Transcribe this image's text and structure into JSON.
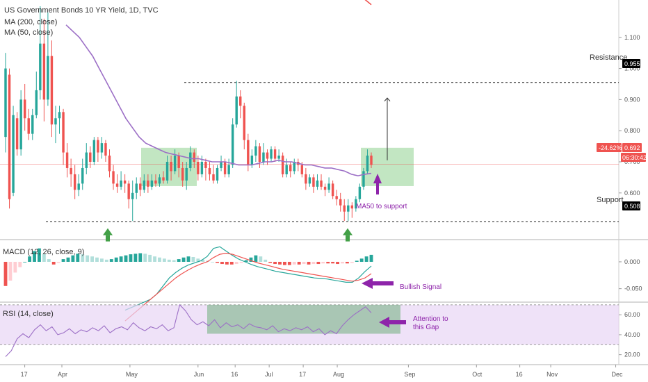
{
  "colors": {
    "up": "#26a69a",
    "down": "#ef5350",
    "ma50": "#9c6fc6",
    "macd_line": "#26a69a",
    "signal_line": "#ef5350",
    "annotation": "#8e24aa",
    "green_arrow": "#43a047",
    "zone_fill": "#8fd18f",
    "rsi_band": "#e8d5f5"
  },
  "legend": {
    "title": "US Government Bonds 10 YR Yield, 1D, TVC",
    "ma200": "MA (200, close)",
    "ma50": "MA (50, close)"
  },
  "price_labels": {
    "resistance_text": "Resistance",
    "resistance_value": "0.955",
    "support_text": "Support",
    "support_value": "0.508",
    "current_change": "-24.62%",
    "current_value": "0.692",
    "countdown": "06:30:42"
  },
  "annotations": {
    "ma50_support": "MA50 to support",
    "bullish": "Bullish Signal",
    "gap_line1": "Attention to",
    "gap_line2": "this Gap"
  },
  "panes": {
    "macd_title": "MACD (12, 26, close, 9)",
    "rsi_title": "RSI (14, close)"
  },
  "chart_data": [
    {
      "type": "candlestick",
      "title": "US Government Bonds 10 YR Yield, 1D, TVC",
      "x_tick_labels": [
        "17",
        "Apr",
        "May",
        "Jun",
        "16",
        "Jul",
        "17",
        "Aug",
        "Sep",
        "Oct",
        "16",
        "Nov",
        "Dec"
      ],
      "y_ticks": [
        0.6,
        0.7,
        0.8,
        0.9,
        1.0,
        1.1
      ],
      "y_tick_labels": [
        "0.600",
        "0.700",
        "0.800",
        "0.900",
        "1.000",
        "1.100"
      ],
      "ylim": [
        0.45,
        1.22
      ],
      "resistance": 0.955,
      "support": 0.508,
      "last": 0.692,
      "candles": [
        {
          "o": 0.78,
          "c": 1.0,
          "h": 1.05,
          "l": 0.73
        },
        {
          "o": 0.98,
          "c": 0.58,
          "h": 1.0,
          "l": 0.55
        },
        {
          "o": 0.6,
          "c": 0.85,
          "h": 0.88,
          "l": 0.59
        },
        {
          "o": 0.84,
          "c": 0.74,
          "h": 0.86,
          "l": 0.72
        },
        {
          "o": 0.74,
          "c": 0.9,
          "h": 0.93,
          "l": 0.72
        },
        {
          "o": 0.9,
          "c": 0.84,
          "h": 0.95,
          "l": 0.8
        },
        {
          "o": 0.84,
          "c": 0.79,
          "h": 0.87,
          "l": 0.77
        },
        {
          "o": 0.79,
          "c": 0.85,
          "h": 0.87,
          "l": 0.77
        },
        {
          "o": 0.85,
          "c": 0.93,
          "h": 0.99,
          "l": 0.84
        },
        {
          "o": 0.93,
          "c": 1.08,
          "h": 1.2,
          "l": 0.9
        },
        {
          "o": 1.08,
          "c": 0.9,
          "h": 1.16,
          "l": 0.83
        },
        {
          "o": 0.9,
          "c": 1.04,
          "h": 1.18,
          "l": 0.88
        },
        {
          "o": 1.04,
          "c": 0.82,
          "h": 1.09,
          "l": 0.78
        },
        {
          "o": 0.82,
          "c": 0.84,
          "h": 0.88,
          "l": 0.76
        },
        {
          "o": 0.84,
          "c": 0.86,
          "h": 0.88,
          "l": 0.79
        },
        {
          "o": 0.86,
          "c": 0.73,
          "h": 0.87,
          "l": 0.69
        },
        {
          "o": 0.73,
          "c": 0.68,
          "h": 0.76,
          "l": 0.65
        },
        {
          "o": 0.68,
          "c": 0.66,
          "h": 0.71,
          "l": 0.62
        },
        {
          "o": 0.66,
          "c": 0.61,
          "h": 0.69,
          "l": 0.58
        },
        {
          "o": 0.61,
          "c": 0.63,
          "h": 0.66,
          "l": 0.59
        },
        {
          "o": 0.63,
          "c": 0.68,
          "h": 0.71,
          "l": 0.61
        },
        {
          "o": 0.68,
          "c": 0.73,
          "h": 0.76,
          "l": 0.66
        },
        {
          "o": 0.73,
          "c": 0.7,
          "h": 0.75,
          "l": 0.68
        },
        {
          "o": 0.7,
          "c": 0.77,
          "h": 0.78,
          "l": 0.69
        },
        {
          "o": 0.77,
          "c": 0.73,
          "h": 0.78,
          "l": 0.7
        },
        {
          "o": 0.73,
          "c": 0.76,
          "h": 0.78,
          "l": 0.71
        },
        {
          "o": 0.76,
          "c": 0.72,
          "h": 0.77,
          "l": 0.7
        },
        {
          "o": 0.72,
          "c": 0.67,
          "h": 0.74,
          "l": 0.65
        },
        {
          "o": 0.67,
          "c": 0.63,
          "h": 0.69,
          "l": 0.61
        },
        {
          "o": 0.63,
          "c": 0.62,
          "h": 0.66,
          "l": 0.6
        },
        {
          "o": 0.62,
          "c": 0.64,
          "h": 0.67,
          "l": 0.61
        },
        {
          "o": 0.64,
          "c": 0.63,
          "h": 0.66,
          "l": 0.6
        },
        {
          "o": 0.63,
          "c": 0.58,
          "h": 0.64,
          "l": 0.55
        },
        {
          "o": 0.58,
          "c": 0.6,
          "h": 0.64,
          "l": 0.51
        },
        {
          "o": 0.6,
          "c": 0.63,
          "h": 0.65,
          "l": 0.58
        },
        {
          "o": 0.63,
          "c": 0.61,
          "h": 0.65,
          "l": 0.59
        },
        {
          "o": 0.61,
          "c": 0.64,
          "h": 0.66,
          "l": 0.6
        },
        {
          "o": 0.64,
          "c": 0.62,
          "h": 0.66,
          "l": 0.6
        },
        {
          "o": 0.62,
          "c": 0.64,
          "h": 0.66,
          "l": 0.61
        },
        {
          "o": 0.64,
          "c": 0.63,
          "h": 0.66,
          "l": 0.62
        },
        {
          "o": 0.63,
          "c": 0.65,
          "h": 0.66,
          "l": 0.62
        },
        {
          "o": 0.65,
          "c": 0.64,
          "h": 0.67,
          "l": 0.63
        },
        {
          "o": 0.64,
          "c": 0.7,
          "h": 0.72,
          "l": 0.63
        },
        {
          "o": 0.7,
          "c": 0.67,
          "h": 0.72,
          "l": 0.64
        },
        {
          "o": 0.67,
          "c": 0.72,
          "h": 0.74,
          "l": 0.66
        },
        {
          "o": 0.72,
          "c": 0.68,
          "h": 0.73,
          "l": 0.65
        },
        {
          "o": 0.68,
          "c": 0.64,
          "h": 0.7,
          "l": 0.62
        },
        {
          "o": 0.64,
          "c": 0.68,
          "h": 0.7,
          "l": 0.61
        },
        {
          "o": 0.68,
          "c": 0.73,
          "h": 0.75,
          "l": 0.67
        },
        {
          "o": 0.73,
          "c": 0.7,
          "h": 0.74,
          "l": 0.68
        },
        {
          "o": 0.7,
          "c": 0.66,
          "h": 0.72,
          "l": 0.64
        },
        {
          "o": 0.66,
          "c": 0.7,
          "h": 0.72,
          "l": 0.65
        },
        {
          "o": 0.7,
          "c": 0.68,
          "h": 0.71,
          "l": 0.64
        },
        {
          "o": 0.68,
          "c": 0.66,
          "h": 0.7,
          "l": 0.64
        },
        {
          "o": 0.66,
          "c": 0.64,
          "h": 0.69,
          "l": 0.63
        },
        {
          "o": 0.64,
          "c": 0.68,
          "h": 0.69,
          "l": 0.63
        },
        {
          "o": 0.68,
          "c": 0.7,
          "h": 0.72,
          "l": 0.67
        },
        {
          "o": 0.7,
          "c": 0.66,
          "h": 0.71,
          "l": 0.65
        },
        {
          "o": 0.66,
          "c": 0.69,
          "h": 0.71,
          "l": 0.65
        },
        {
          "o": 0.69,
          "c": 0.82,
          "h": 0.84,
          "l": 0.68
        },
        {
          "o": 0.82,
          "c": 0.91,
          "h": 0.96,
          "l": 0.81
        },
        {
          "o": 0.91,
          "c": 0.88,
          "h": 0.93,
          "l": 0.84
        },
        {
          "o": 0.88,
          "c": 0.77,
          "h": 0.89,
          "l": 0.74
        },
        {
          "o": 0.77,
          "c": 0.69,
          "h": 0.79,
          "l": 0.67
        },
        {
          "o": 0.69,
          "c": 0.72,
          "h": 0.74,
          "l": 0.68
        },
        {
          "o": 0.72,
          "c": 0.75,
          "h": 0.77,
          "l": 0.7
        },
        {
          "o": 0.75,
          "c": 0.7,
          "h": 0.76,
          "l": 0.68
        },
        {
          "o": 0.7,
          "c": 0.73,
          "h": 0.76,
          "l": 0.69
        },
        {
          "o": 0.73,
          "c": 0.71,
          "h": 0.74,
          "l": 0.69
        },
        {
          "o": 0.71,
          "c": 0.74,
          "h": 0.75,
          "l": 0.7
        },
        {
          "o": 0.74,
          "c": 0.71,
          "h": 0.75,
          "l": 0.7
        },
        {
          "o": 0.71,
          "c": 0.72,
          "h": 0.74,
          "l": 0.7
        },
        {
          "o": 0.72,
          "c": 0.66,
          "h": 0.73,
          "l": 0.65
        },
        {
          "o": 0.66,
          "c": 0.69,
          "h": 0.71,
          "l": 0.65
        },
        {
          "o": 0.69,
          "c": 0.67,
          "h": 0.7,
          "l": 0.65
        },
        {
          "o": 0.67,
          "c": 0.7,
          "h": 0.71,
          "l": 0.66
        },
        {
          "o": 0.7,
          "c": 0.69,
          "h": 0.71,
          "l": 0.67
        },
        {
          "o": 0.69,
          "c": 0.66,
          "h": 0.7,
          "l": 0.65
        },
        {
          "o": 0.66,
          "c": 0.63,
          "h": 0.68,
          "l": 0.61
        },
        {
          "o": 0.63,
          "c": 0.65,
          "h": 0.66,
          "l": 0.62
        },
        {
          "o": 0.65,
          "c": 0.62,
          "h": 0.66,
          "l": 0.6
        },
        {
          "o": 0.62,
          "c": 0.64,
          "h": 0.66,
          "l": 0.61
        },
        {
          "o": 0.64,
          "c": 0.62,
          "h": 0.66,
          "l": 0.61
        },
        {
          "o": 0.62,
          "c": 0.61,
          "h": 0.63,
          "l": 0.59
        },
        {
          "o": 0.61,
          "c": 0.63,
          "h": 0.65,
          "l": 0.6
        },
        {
          "o": 0.63,
          "c": 0.59,
          "h": 0.64,
          "l": 0.58
        },
        {
          "o": 0.59,
          "c": 0.58,
          "h": 0.61,
          "l": 0.56
        },
        {
          "o": 0.58,
          "c": 0.56,
          "h": 0.6,
          "l": 0.54
        },
        {
          "o": 0.56,
          "c": 0.54,
          "h": 0.58,
          "l": 0.51
        },
        {
          "o": 0.54,
          "c": 0.56,
          "h": 0.58,
          "l": 0.51
        },
        {
          "o": 0.56,
          "c": 0.55,
          "h": 0.57,
          "l": 0.52
        },
        {
          "o": 0.55,
          "c": 0.58,
          "h": 0.59,
          "l": 0.54
        },
        {
          "o": 0.58,
          "c": 0.62,
          "h": 0.63,
          "l": 0.57
        },
        {
          "o": 0.62,
          "c": 0.67,
          "h": 0.68,
          "l": 0.61
        },
        {
          "o": 0.67,
          "c": 0.72,
          "h": 0.74,
          "l": 0.66
        },
        {
          "o": 0.72,
          "c": 0.69,
          "h": 0.73,
          "l": 0.68
        }
      ],
      "ma50": [
        1.14,
        1.12,
        1.1,
        1.07,
        1.04,
        1.0,
        0.96,
        0.92,
        0.88,
        0.84,
        0.81,
        0.78,
        0.76,
        0.75,
        0.74,
        0.73,
        0.725,
        0.72,
        0.715,
        0.71,
        0.71,
        0.705,
        0.7,
        0.7,
        0.7,
        0.695,
        0.69,
        0.69,
        0.69,
        0.695,
        0.7,
        0.7,
        0.705,
        0.7,
        0.7,
        0.695,
        0.69,
        0.69,
        0.685,
        0.68,
        0.68,
        0.675,
        0.67,
        0.66,
        0.655,
        0.66,
        0.663
      ],
      "x_tick_fractions": [
        0.04,
        0.1,
        0.21,
        0.32,
        0.38,
        0.435,
        0.49,
        0.545,
        0.66,
        0.77,
        0.84,
        0.89,
        0.995
      ]
    },
    {
      "type": "bar",
      "title": "MACD (12, 26, close, 9)",
      "y_ticks": [
        0.0,
        -0.05
      ],
      "y_tick_labels": [
        "0.000",
        "-0.050"
      ],
      "ylim": [
        -0.075,
        0.04
      ],
      "histogram": [
        -0.045,
        -0.035,
        -0.02,
        -0.01,
        0.0,
        0.01,
        0.02,
        0.025,
        0.015,
        0.005,
        -0.005,
        -0.002,
        0.005,
        0.008,
        0.012,
        0.015,
        0.014,
        0.012,
        0.01,
        0.008,
        0.006,
        0.004,
        0.005,
        0.008,
        0.01,
        0.012,
        0.014,
        0.015,
        0.016,
        0.015,
        0.013,
        0.01,
        0.008,
        0.006,
        0.004,
        0.003,
        0.005,
        0.008,
        0.01,
        0.009,
        0.006,
        0.004,
        0.002,
        0.0,
        -0.002,
        -0.004,
        -0.005,
        -0.005,
        -0.004,
        -0.002,
        0.003,
        0.008,
        0.012,
        0.01,
        0.004,
        -0.002,
        -0.004,
        -0.005,
        -0.006,
        -0.006,
        -0.005,
        -0.005,
        -0.004,
        -0.005,
        -0.004,
        -0.004,
        -0.003,
        -0.003,
        -0.003,
        -0.004,
        -0.003,
        -0.003,
        -0.002,
        0.002,
        0.006,
        0.01,
        0.013
      ],
      "macd": [
        -0.09,
        -0.085,
        -0.08,
        -0.075,
        -0.07,
        -0.06,
        -0.045,
        -0.03,
        -0.02,
        -0.012,
        -0.006,
        -0.002,
        0.002,
        0.01,
        0.025,
        0.028,
        0.02,
        0.012,
        0.005,
        0.0,
        -0.005,
        -0.009,
        -0.012,
        -0.015,
        -0.018,
        -0.02,
        -0.022,
        -0.024,
        -0.026,
        -0.028,
        -0.03,
        -0.031,
        -0.032,
        -0.034,
        -0.036,
        -0.038,
        -0.038,
        -0.03,
        -0.018,
        -0.008
      ],
      "signal": [
        -0.11,
        -0.1,
        -0.09,
        -0.08,
        -0.07,
        -0.06,
        -0.05,
        -0.04,
        -0.03,
        -0.022,
        -0.015,
        -0.009,
        -0.004,
        0.0,
        0.008,
        0.014,
        0.016,
        0.014,
        0.01,
        0.006,
        0.002,
        -0.002,
        -0.005,
        -0.008,
        -0.011,
        -0.014,
        -0.016,
        -0.018,
        -0.02,
        -0.022,
        -0.024,
        -0.026,
        -0.028,
        -0.03,
        -0.032,
        -0.034,
        -0.036,
        -0.034,
        -0.03,
        -0.022
      ]
    },
    {
      "type": "line",
      "title": "RSI (14, close)",
      "y_ticks": [
        20,
        40,
        60
      ],
      "y_tick_labels": [
        "20.00",
        "40.00",
        "60.00"
      ],
      "ylim": [
        10,
        72
      ],
      "band": [
        30,
        70
      ],
      "values": [
        18,
        24,
        36,
        41,
        37,
        45,
        50,
        44,
        48,
        40,
        42,
        46,
        41,
        45,
        43,
        47,
        44,
        49,
        42,
        46,
        48,
        45,
        52,
        47,
        44,
        48,
        46,
        50,
        44,
        47,
        70,
        64,
        55,
        50,
        53,
        49,
        55,
        47,
        52,
        48,
        50,
        46,
        51,
        48,
        47,
        45,
        49,
        43,
        46,
        44,
        47,
        45,
        48,
        43,
        46,
        40,
        44,
        41,
        49,
        55,
        60,
        64,
        68,
        62
      ]
    }
  ]
}
